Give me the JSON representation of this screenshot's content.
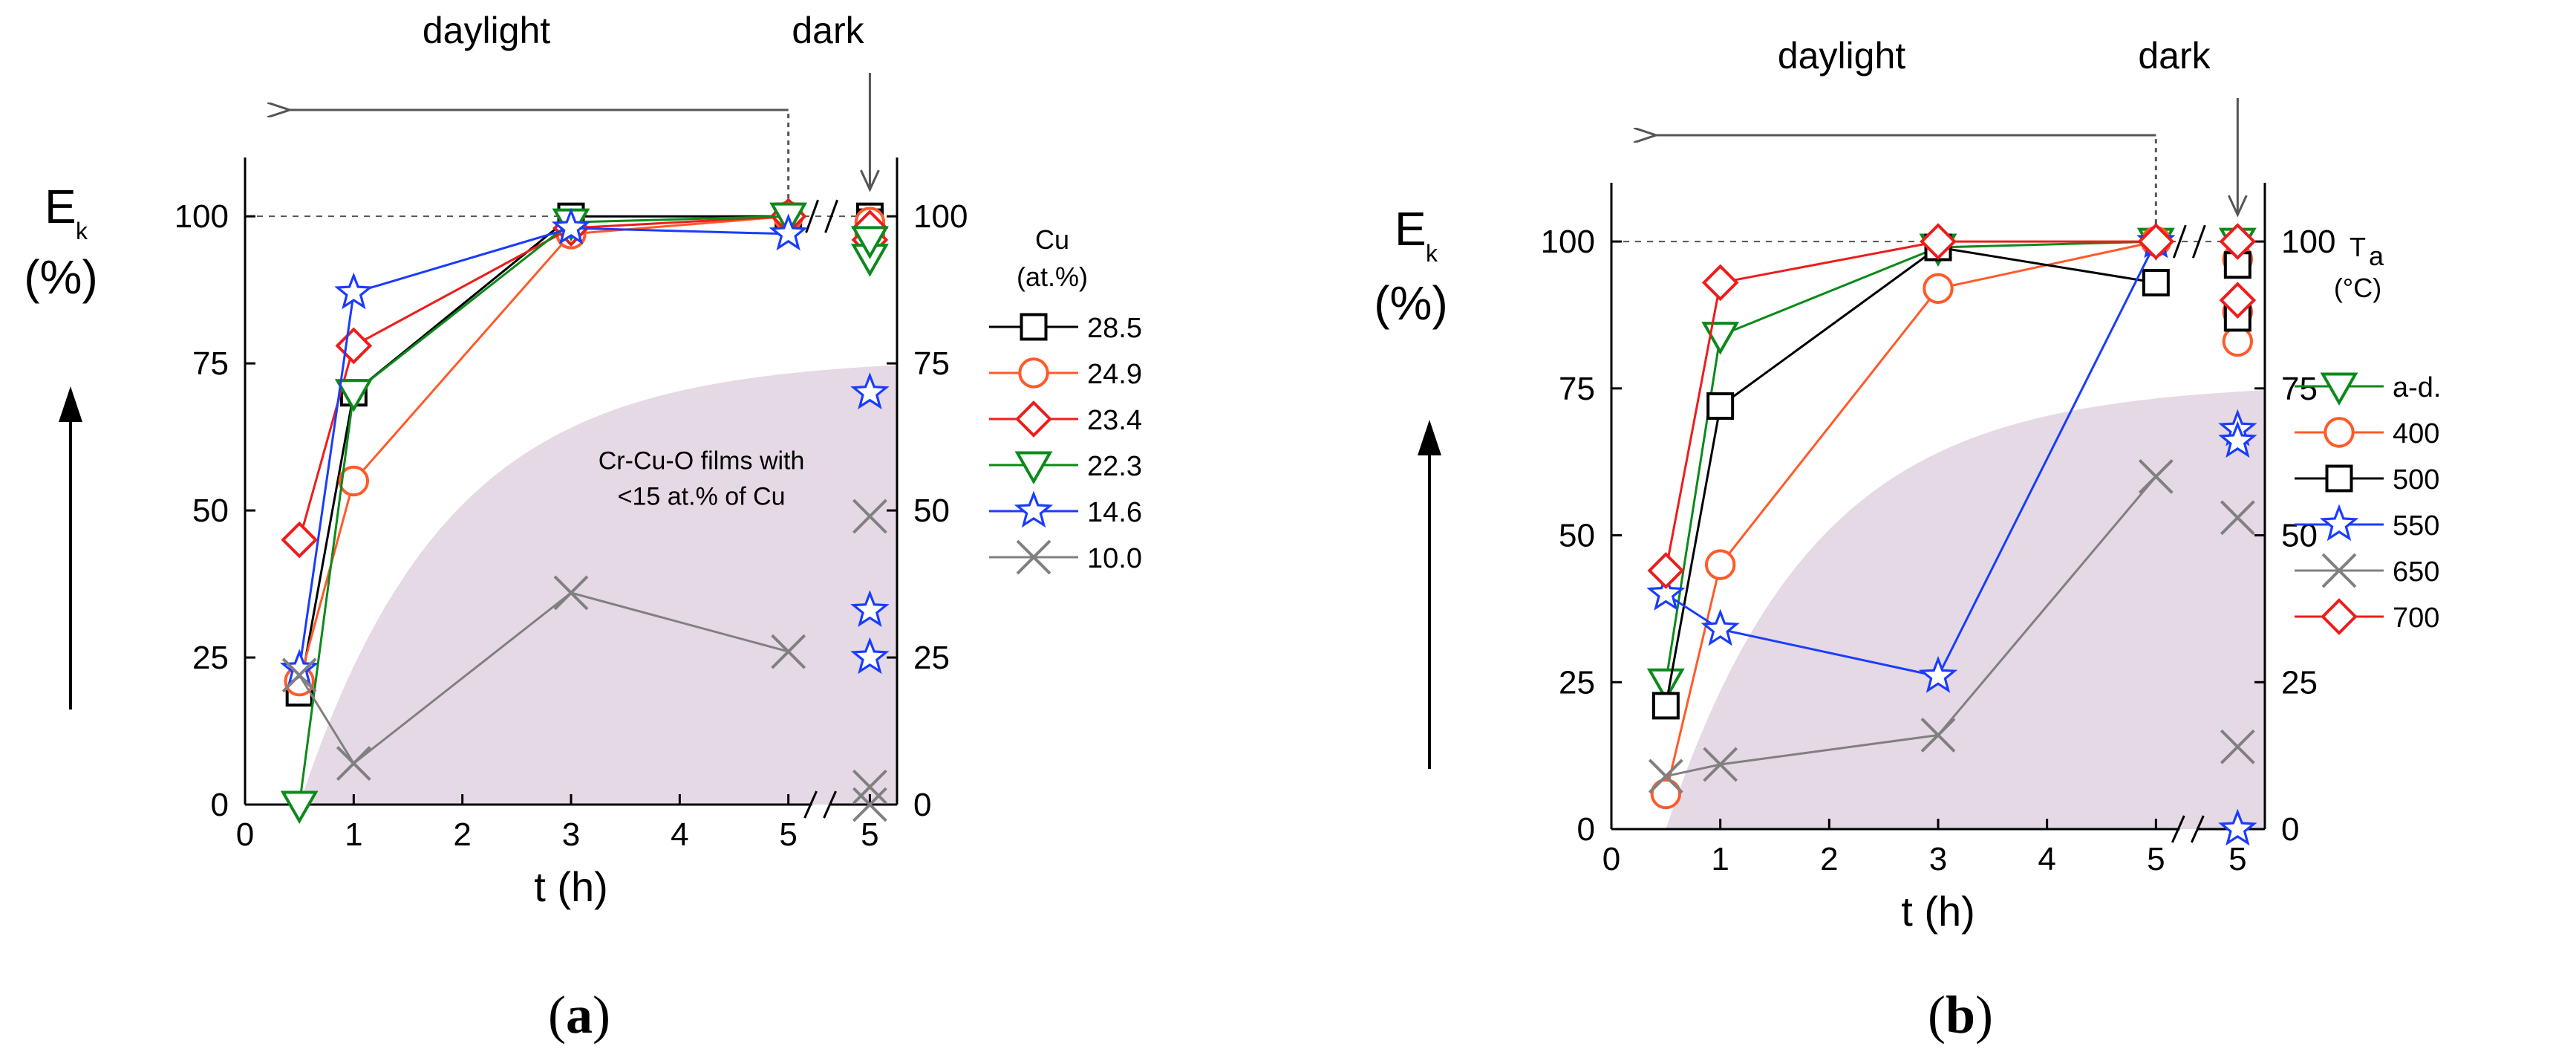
{
  "chart_data": [
    {
      "id": "a",
      "type": "line",
      "panel_label": "a",
      "ylabel_main": "E",
      "ylabel_sub": "k",
      "ylabel_unit": "(%)",
      "xlabel": "t (h)",
      "xlim": [
        0,
        6
      ],
      "ylim": [
        0,
        110
      ],
      "x_ticks": [
        "0",
        "1",
        "2",
        "3",
        "4",
        "5"
      ],
      "dark_tick": "5",
      "y_ticks": [
        "0",
        "25",
        "50",
        "75",
        "100"
      ],
      "y_ticks_right": [
        "0",
        "25",
        "50",
        "75",
        "100"
      ],
      "annotations": {
        "daylight": "daylight",
        "dark": "dark"
      },
      "inset_text": [
        "Cr-Cu-O films with",
        "<15 at.% of Cu"
      ],
      "legend_title": [
        "Cu",
        "(at.%)"
      ],
      "series": [
        {
          "name": "28.5",
          "color": "#000000",
          "marker": "square",
          "x": [
            0.5,
            1,
            3,
            5
          ],
          "values": [
            19,
            70,
            100,
            100
          ],
          "dark": [
            98,
            100,
            99
          ]
        },
        {
          "name": "24.9",
          "color": "#ff5a2a",
          "marker": "circle",
          "x": [
            0.5,
            1,
            3,
            5
          ],
          "values": [
            21,
            55,
            97,
            100
          ],
          "dark": [
            97,
            99
          ]
        },
        {
          "name": "23.4",
          "color": "#ee1c1c",
          "marker": "diamond",
          "x": [
            0.5,
            1,
            3,
            5
          ],
          "values": [
            45,
            78,
            98,
            100
          ],
          "dark": [
            96,
            98
          ]
        },
        {
          "name": "22.3",
          "color": "#0b8a1a",
          "marker": "triangle-down",
          "x": [
            0.5,
            1,
            3,
            5
          ],
          "values": [
            0,
            70,
            99,
            100
          ],
          "dark": [
            93,
            96
          ]
        },
        {
          "name": "14.6",
          "color": "#1a3cff",
          "marker": "star",
          "x": [
            0.5,
            1,
            3,
            5
          ],
          "values": [
            23,
            87,
            98,
            97
          ],
          "dark": [
            70,
            33,
            25
          ]
        },
        {
          "name": "10.0",
          "color": "#808080",
          "marker": "x",
          "x": [
            0.5,
            1,
            3,
            5
          ],
          "values": [
            22,
            7,
            36,
            26
          ],
          "dark": [
            49,
            3,
            0
          ]
        }
      ]
    },
    {
      "id": "b",
      "type": "line",
      "panel_label": "b",
      "ylabel_main": "E",
      "ylabel_sub": "k",
      "ylabel_unit": "(%)",
      "xlabel": "t (h)",
      "xlim": [
        0,
        6
      ],
      "ylim": [
        0,
        110
      ],
      "x_ticks": [
        "0",
        "1",
        "2",
        "3",
        "4",
        "5"
      ],
      "dark_tick": "5",
      "y_ticks": [
        "0",
        "25",
        "50",
        "75",
        "100"
      ],
      "y_ticks_right": [
        "0",
        "25",
        "50",
        "75",
        "100"
      ],
      "annotations": {
        "daylight": "daylight",
        "dark": "dark"
      },
      "legend_title": [
        "T",
        "a",
        "(°C)"
      ],
      "series": [
        {
          "name": "a-d.",
          "color": "#0b8a1a",
          "marker": "triangle-down",
          "x": [
            0.5,
            1,
            3,
            5
          ],
          "values": [
            25,
            84,
            99,
            100
          ],
          "dark": [
            100
          ]
        },
        {
          "name": "400",
          "color": "#ff5a2a",
          "marker": "circle",
          "x": [
            0.5,
            1,
            3,
            5
          ],
          "values": [
            6,
            45,
            92,
            100
          ],
          "dark": [
            83,
            88,
            97
          ]
        },
        {
          "name": "500",
          "color": "#000000",
          "marker": "square",
          "x": [
            0.5,
            1,
            3,
            5
          ],
          "values": [
            21,
            72,
            99,
            93
          ],
          "dark": [
            96,
            87
          ]
        },
        {
          "name": "550",
          "color": "#1a3cff",
          "marker": "star",
          "x": [
            0.5,
            1,
            3,
            5
          ],
          "values": [
            40,
            34,
            26,
            100
          ],
          "dark": [
            68,
            66,
            0
          ]
        },
        {
          "name": "650",
          "color": "#808080",
          "marker": "x",
          "x": [
            0.5,
            1,
            3,
            5
          ],
          "values": [
            9,
            11,
            16,
            60
          ],
          "dark": [
            53,
            14
          ]
        },
        {
          "name": "700",
          "color": "#ee1c1c",
          "marker": "diamond",
          "x": [
            0.5,
            1,
            3,
            5
          ],
          "values": [
            44,
            93,
            100,
            100
          ],
          "dark": [
            100,
            90
          ]
        }
      ]
    }
  ]
}
